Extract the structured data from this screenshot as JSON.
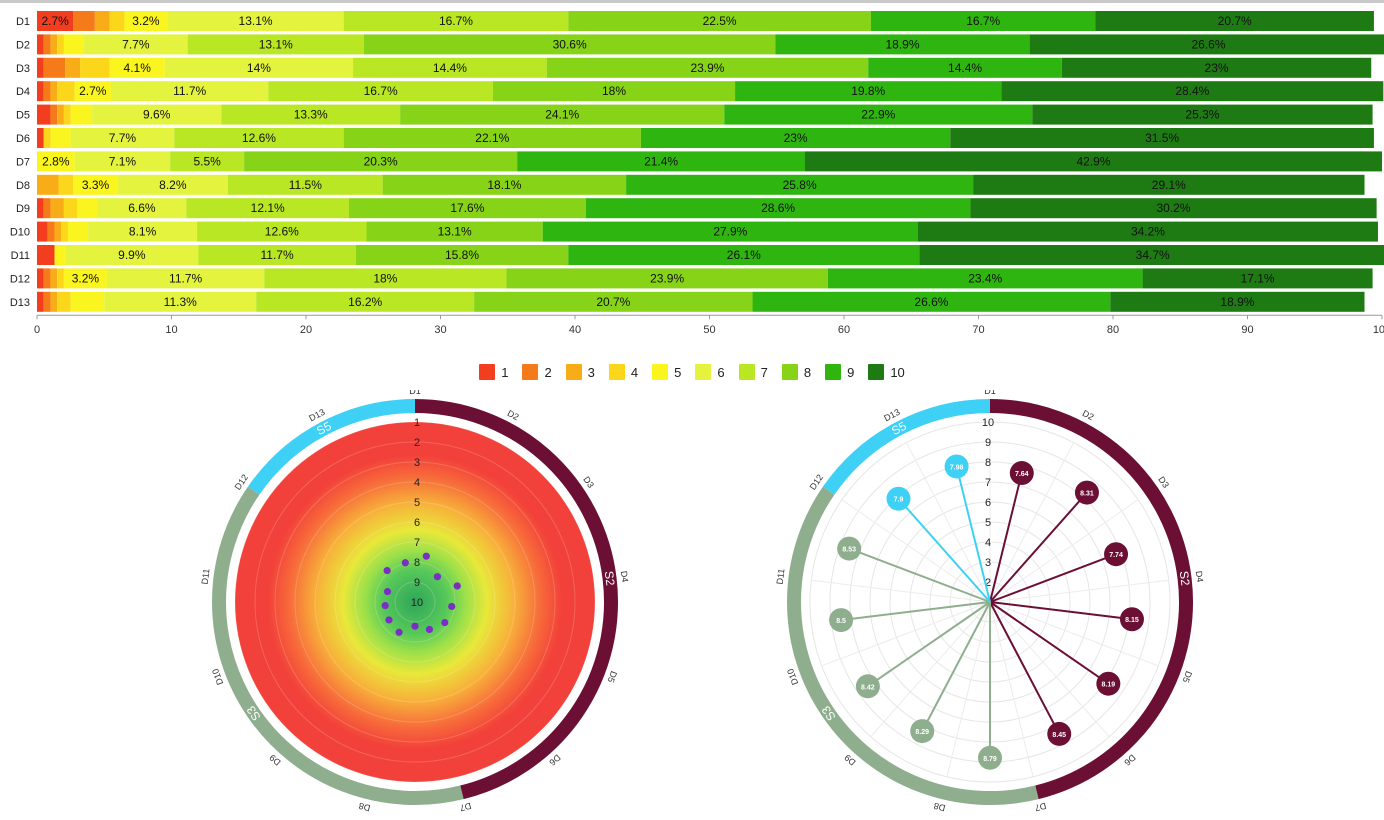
{
  "chart_data": [
    {
      "type": "bar",
      "orientation": "horizontal",
      "stacked": true,
      "percent": true,
      "categories": [
        "D1",
        "D2",
        "D3",
        "D4",
        "D5",
        "D6",
        "D7",
        "D8",
        "D9",
        "D10",
        "D11",
        "D12",
        "D13"
      ],
      "xlim": [
        0,
        100
      ],
      "xticks": [
        "0",
        "10",
        "20",
        "30",
        "40",
        "50",
        "60",
        "70",
        "80",
        "90",
        "100"
      ],
      "legend_position": "bottom-center",
      "series": [
        {
          "name": "1",
          "values": [
            2.7,
            0.5,
            0.5,
            0.5,
            1.0,
            0.5,
            0.0,
            0.0,
            0.5,
            0.8,
            1.3,
            0.5,
            0.5
          ]
        },
        {
          "name": "2",
          "values": [
            1.6,
            0.5,
            1.6,
            0.5,
            0.5,
            0.0,
            0.0,
            0.0,
            0.5,
            0.5,
            0.0,
            0.5,
            0.5
          ]
        },
        {
          "name": "3",
          "values": [
            1.1,
            0.5,
            1.1,
            0.5,
            0.5,
            0.0,
            0.0,
            1.6,
            1.0,
            0.5,
            0.0,
            0.5,
            0.5
          ]
        },
        {
          "name": "4",
          "values": [
            1.1,
            0.5,
            2.2,
            1.3,
            0.5,
            0.5,
            0.0,
            1.1,
            1.0,
            0.5,
            0.0,
            0.5,
            1.0
          ]
        },
        {
          "name": "5",
          "values": [
            3.2,
            1.5,
            4.1,
            2.7,
            1.6,
            1.5,
            2.8,
            3.3,
            1.5,
            1.5,
            0.8,
            3.2,
            2.5
          ]
        },
        {
          "name": "6",
          "values": [
            13.1,
            7.7,
            14.0,
            11.7,
            9.6,
            7.7,
            7.1,
            8.2,
            6.6,
            8.1,
            9.9,
            11.7,
            11.3
          ]
        },
        {
          "name": "7",
          "values": [
            16.7,
            13.1,
            14.4,
            16.7,
            13.3,
            12.6,
            5.5,
            11.5,
            12.1,
            12.6,
            11.7,
            18.0,
            16.2
          ]
        },
        {
          "name": "8",
          "values": [
            22.5,
            30.6,
            23.9,
            18.0,
            24.1,
            22.1,
            20.3,
            18.1,
            17.6,
            13.1,
            15.8,
            23.9,
            20.7
          ]
        },
        {
          "name": "9",
          "values": [
            16.7,
            18.9,
            14.4,
            19.8,
            22.9,
            23.0,
            21.4,
            25.8,
            28.6,
            27.9,
            26.1,
            23.4,
            26.6
          ]
        },
        {
          "name": "10",
          "values": [
            20.7,
            26.6,
            23.0,
            28.4,
            25.3,
            31.5,
            42.9,
            29.1,
            30.2,
            34.2,
            34.7,
            17.1,
            18.9
          ]
        }
      ],
      "data_labels": {
        "D1": {
          "1": "2.7%",
          "5": "3.2%",
          "6": "13.1%",
          "7": "16.7%",
          "8": "22.5%",
          "9": "16.7%",
          "10": "20.7%"
        },
        "D2": {
          "6": "7.7%",
          "7": "13.1%",
          "8": "30.6%",
          "9": "18.9%",
          "10": "26.6%"
        },
        "D3": {
          "5": "4.1%",
          "6": "14%",
          "7": "14.4%",
          "8": "23.9%",
          "9": "14.4%",
          "10": "23%"
        },
        "D4": {
          "5": "2.7%",
          "6": "11.7%",
          "7": "16.7%",
          "8": "18%",
          "9": "19.8%",
          "10": "28.4%"
        },
        "D5": {
          "6": "9.6%",
          "7": "13.3%",
          "8": "24.1%",
          "9": "22.9%",
          "10": "25.3%"
        },
        "D6": {
          "6": "7.7%",
          "7": "12.6%",
          "8": "22.1%",
          "9": "23%",
          "10": "31.5%"
        },
        "D7": {
          "5": "2.8%",
          "6": "7.1%",
          "7": "5.5%",
          "8": "20.3%",
          "9": "21.4%",
          "10": "42.9%"
        },
        "D8": {
          "5": "3.3%",
          "6": "8.2%",
          "7": "11.5%",
          "8": "18.1%",
          "9": "25.8%",
          "10": "29.1%"
        },
        "D9": {
          "6": "6.6%",
          "7": "12.1%",
          "8": "17.6%",
          "9": "28.6%",
          "10": "30.2%"
        },
        "D10": {
          "6": "8.1%",
          "7": "12.6%",
          "8": "13.1%",
          "9": "27.9%",
          "10": "34.2%"
        },
        "D11": {
          "6": "9.9%",
          "7": "11.7%",
          "8": "15.8%",
          "9": "26.1%",
          "10": "34.7%"
        },
        "D12": {
          "5": "3.2%",
          "6": "11.7%",
          "7": "18%",
          "8": "23.9%",
          "9": "23.4%",
          "10": "17.1%"
        },
        "D13": {
          "6": "11.3%",
          "7": "16.2%",
          "8": "20.7%",
          "9": "26.6%",
          "10": "18.9%"
        }
      },
      "colors": {
        "1": "#f23d1f",
        "2": "#f47a1a",
        "3": "#f8ac17",
        "4": "#fbd61a",
        "5": "#fbf51f",
        "6": "#e3f33e",
        "7": "#b9e723",
        "8": "#86d317",
        "9": "#2fb50f",
        "10": "#1e7b13"
      }
    },
    {
      "type": "radar",
      "variant": "heat-gradient-dots",
      "axes": [
        "D1",
        "D2",
        "D3",
        "D4",
        "D5",
        "D6",
        "D7",
        "D8",
        "D9",
        "D10",
        "D11",
        "D12",
        "D13"
      ],
      "radial_ticks": [
        "1",
        "2",
        "3",
        "4",
        "5",
        "6",
        "7",
        "8",
        "9",
        "10"
      ],
      "rlim": [
        1,
        10
      ],
      "reversed_radius": true,
      "values": [
        7.64,
        8.31,
        7.74,
        8.15,
        8.19,
        8.45,
        8.79,
        8.29,
        8.42,
        8.5,
        8.53,
        7.9,
        7.98
      ],
      "dot_color": "#7a2ec2",
      "groups": [
        {
          "name": "S2",
          "members": [
            "D1",
            "D2",
            "D3",
            "D4",
            "D5",
            "D6"
          ],
          "color": "#6b0f35"
        },
        {
          "name": "S3",
          "members": [
            "D7",
            "D8",
            "D9",
            "D10",
            "D11"
          ],
          "color": "#8eae8e"
        },
        {
          "name": "S5",
          "members": [
            "D12",
            "D13"
          ],
          "color": "#3fd0f5"
        }
      ]
    },
    {
      "type": "radar",
      "variant": "lollipop",
      "axes": [
        "D1",
        "D2",
        "D3",
        "D4",
        "D5",
        "D6",
        "D7",
        "D8",
        "D9",
        "D10",
        "D11",
        "D12",
        "D13"
      ],
      "radial_ticks": [
        "2",
        "3",
        "4",
        "5",
        "6",
        "7",
        "8",
        "9",
        "10"
      ],
      "rlim": [
        1,
        10
      ],
      "values": [
        7.64,
        8.31,
        7.74,
        8.15,
        8.19,
        8.45,
        8.79,
        8.29,
        8.42,
        8.5,
        8.53,
        7.9,
        7.98
      ],
      "value_labels": [
        "7.64",
        "8.31",
        "7.74",
        "8.15",
        "8.19",
        "8.45",
        "8.79",
        "8.29",
        "8.42",
        "8.5",
        "8.53",
        "7.9",
        "7.98"
      ],
      "groups": [
        {
          "name": "S2",
          "members": [
            "D1",
            "D2",
            "D3",
            "D4",
            "D5",
            "D6"
          ],
          "color": "#6b0f35"
        },
        {
          "name": "S3",
          "members": [
            "D7",
            "D8",
            "D9",
            "D10",
            "D11"
          ],
          "color": "#8eae8e"
        },
        {
          "name": "S5",
          "members": [
            "D12",
            "D13"
          ],
          "color": "#3fd0f5"
        }
      ]
    }
  ]
}
